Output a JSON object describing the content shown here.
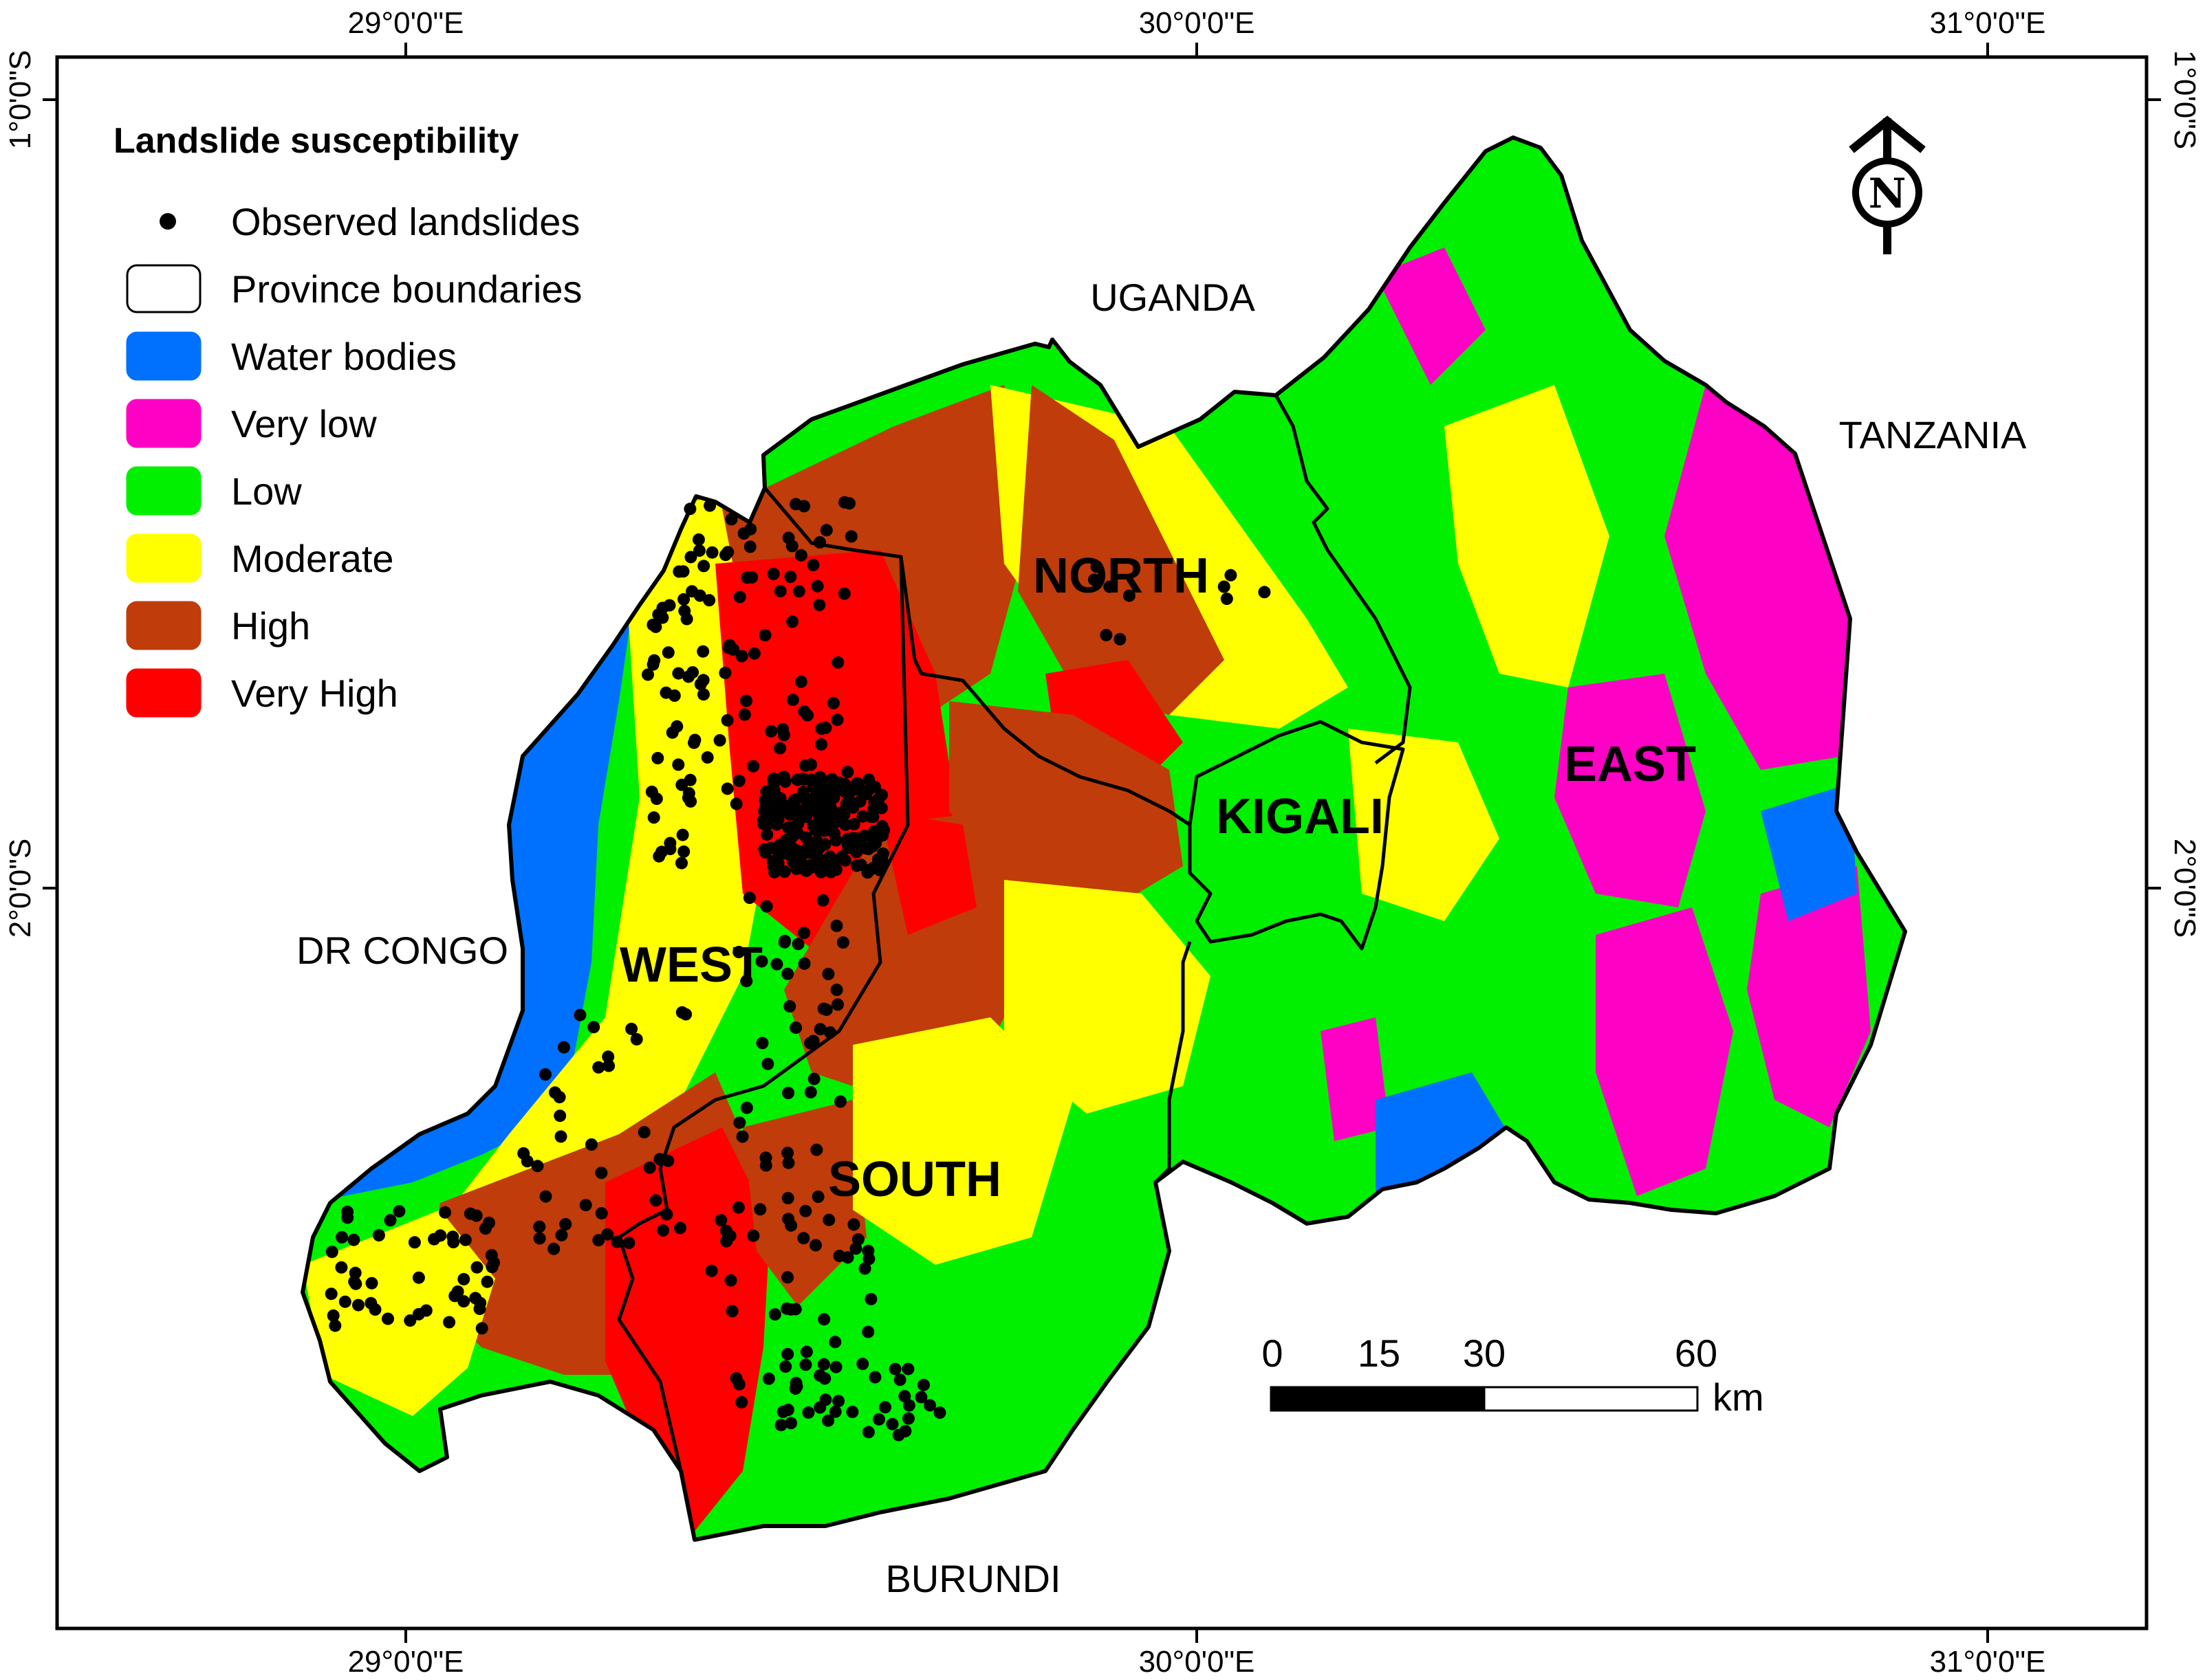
{
  "legend": {
    "title": "Landslide susceptibility",
    "items": [
      {
        "label": "Observed landslides",
        "kind": "point",
        "color": "#000000"
      },
      {
        "label": "Province boundaries",
        "kind": "outline",
        "color": "#ffffff"
      },
      {
        "label": "Water bodies",
        "kind": "fill",
        "color": "#0070ff"
      },
      {
        "label": "Very low",
        "kind": "fill",
        "color": "#ff00c5"
      },
      {
        "label": "Low",
        "kind": "fill",
        "color": "#00f000"
      },
      {
        "label": "Moderate",
        "kind": "fill",
        "color": "#ffff00"
      },
      {
        "label": "High",
        "kind": "fill",
        "color": "#c03c0a"
      },
      {
        "label": "Very High",
        "kind": "fill",
        "color": "#ff0000"
      }
    ]
  },
  "graticule": {
    "top": [
      "29°0'0\"E",
      "30°0'0\"E",
      "31°0'0\"E"
    ],
    "bottom": [
      "29°0'0\"E",
      "30°0'0\"E",
      "31°0'0\"E"
    ],
    "left": [
      "1°0'0\"S",
      "2°0'0\"S"
    ],
    "right": [
      "1°0'0\"S",
      "2°0'0\"S"
    ]
  },
  "countries": {
    "uganda": "UGANDA",
    "tanzania": "TANZANIA",
    "congo": "DR CONGO",
    "burundi": "BURUNDI"
  },
  "provinces": {
    "north": "NORTH",
    "east": "EAST",
    "kigali": "KIGALI",
    "west": "WEST",
    "south": "SOUTH"
  },
  "north_arrow": {
    "letter": "N"
  },
  "scale_bar": {
    "ticks": [
      "0",
      "15",
      "30",
      "60"
    ],
    "unit": "km"
  },
  "colors": {
    "water": "#0070ff",
    "very_low": "#ff00c5",
    "low": "#00f000",
    "moderate": "#ffff00",
    "high": "#c03c0a",
    "very_high": "#ff0000"
  }
}
